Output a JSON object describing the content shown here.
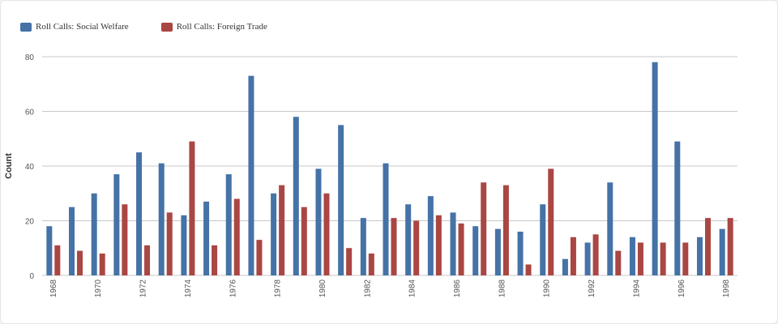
{
  "colors": {
    "series1": "#4572a7",
    "series2": "#aa4643",
    "grid": "#c8c8c8"
  },
  "chart_data": {
    "type": "bar",
    "title": "",
    "xlabel": "",
    "ylabel": "Count",
    "ylim": [
      0,
      80
    ],
    "yticks": [
      0,
      20,
      40,
      60,
      80
    ],
    "grid": true,
    "legend_position": "top-left",
    "categories": [
      "1968",
      "1969",
      "1970",
      "1971",
      "1972",
      "1973",
      "1974",
      "1975",
      "1976",
      "1977",
      "1978",
      "1979",
      "1980",
      "1981",
      "1982",
      "1983",
      "1984",
      "1985",
      "1986",
      "1987",
      "1988",
      "1989",
      "1990",
      "1991",
      "1992",
      "1993",
      "1994",
      "1995",
      "1996",
      "1997",
      "1998"
    ],
    "tick_labels": [
      "1968",
      "",
      "1970",
      "",
      "1972",
      "",
      "1974",
      "",
      "1976",
      "",
      "1978",
      "",
      "1980",
      "",
      "1982",
      "",
      "1984",
      "",
      "1986",
      "",
      "1988",
      "",
      "1990",
      "",
      "1992",
      "",
      "1994",
      "",
      "1996",
      "",
      "1998"
    ],
    "series": [
      {
        "name": "Roll Calls: Social Welfare",
        "values": [
          18,
          25,
          30,
          37,
          45,
          41,
          22,
          27,
          37,
          73,
          30,
          58,
          39,
          55,
          21,
          41,
          26,
          29,
          23,
          18,
          17,
          16,
          26,
          6,
          12,
          34,
          14,
          78,
          49,
          14,
          17
        ]
      },
      {
        "name": "Roll Calls: Foreign Trade",
        "values": [
          11,
          9,
          8,
          26,
          11,
          23,
          49,
          11,
          28,
          13,
          33,
          25,
          30,
          10,
          8,
          21,
          20,
          22,
          19,
          34,
          33,
          4,
          39,
          14,
          15,
          9,
          12,
          12,
          12,
          21,
          21
        ]
      }
    ]
  }
}
